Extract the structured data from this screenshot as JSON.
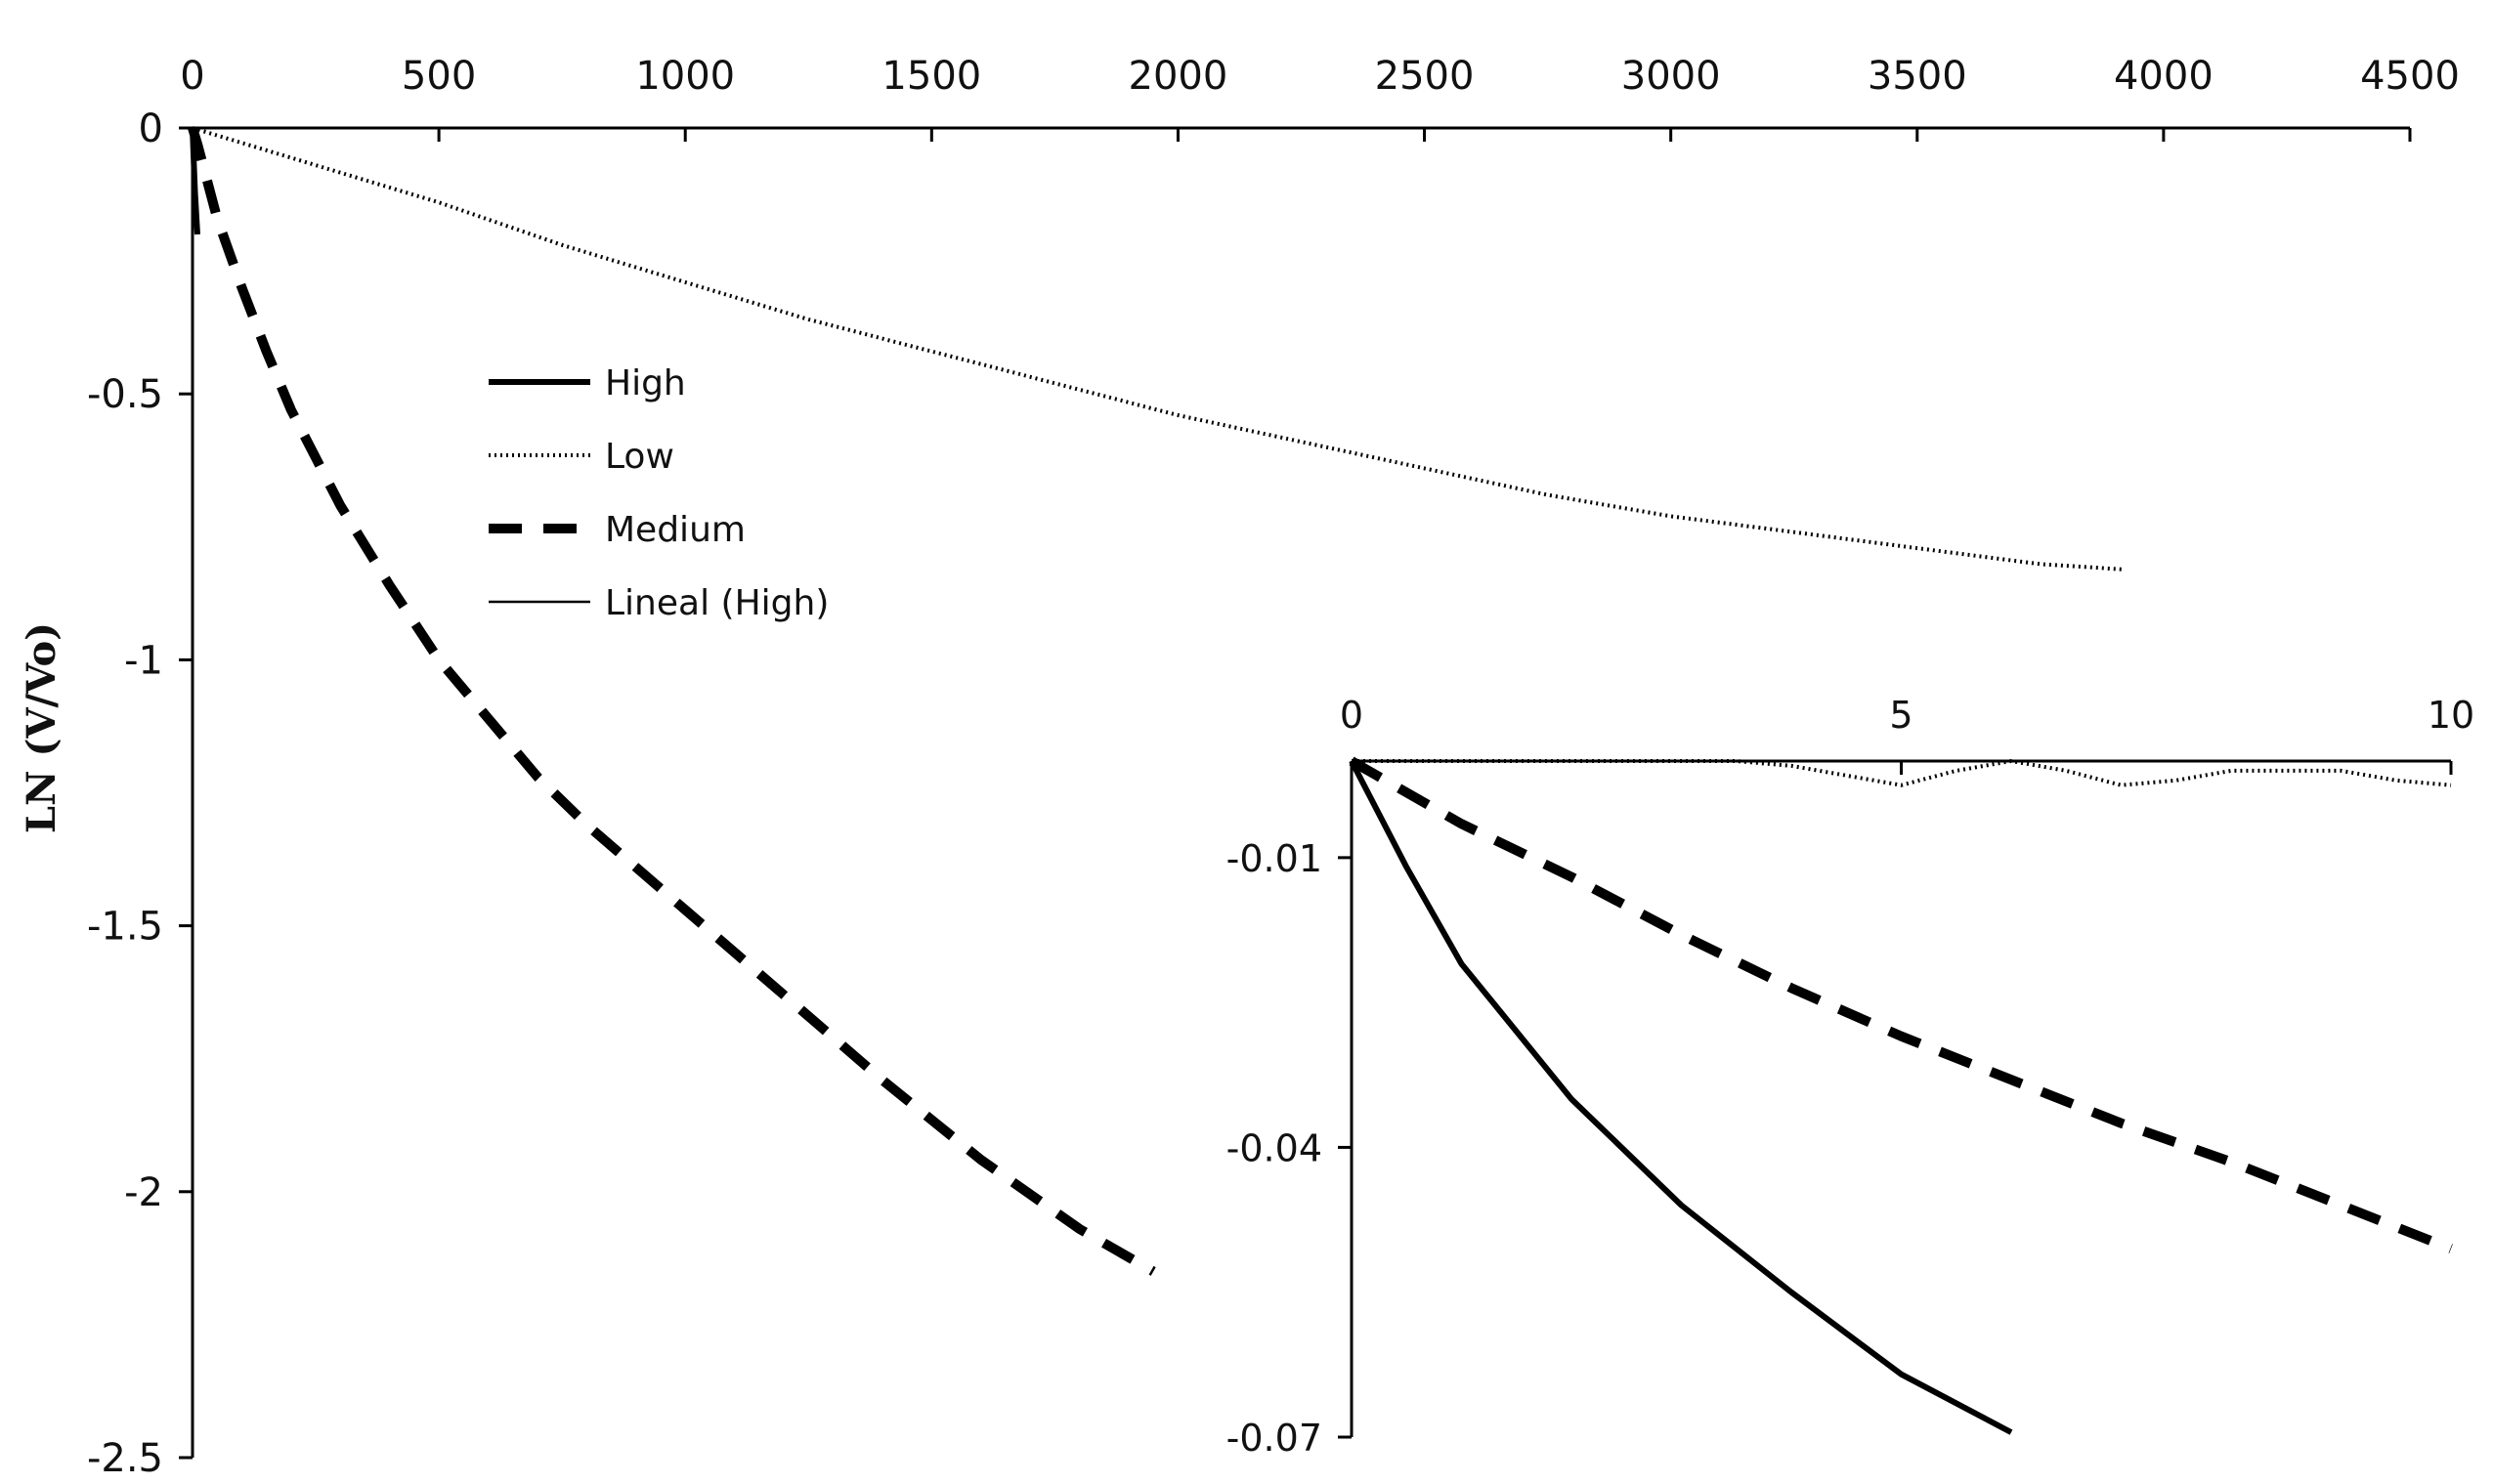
{
  "chart_data": [
    {
      "type": "line",
      "title": "",
      "xlabel": "",
      "ylabel": "LN (V/Vo)",
      "xlim": [
        0,
        4500
      ],
      "ylim": [
        -2.5,
        0
      ],
      "x_axis_position": "top",
      "x_ticks": [
        0,
        500,
        1000,
        1500,
        2000,
        2500,
        3000,
        3500,
        4000,
        4500
      ],
      "y_ticks": [
        0,
        -0.5,
        -1,
        -1.5,
        -2,
        -2.5
      ],
      "grid": false,
      "legend_position": "upper-left",
      "series": [
        {
          "name": "Low",
          "style": "dotted",
          "x": [
            0,
            250,
            500,
            750,
            1000,
            1250,
            1500,
            1750,
            2000,
            2250,
            2500,
            2750,
            3000,
            3250,
            3500,
            3750,
            3920
          ],
          "y": [
            0,
            -0.07,
            -0.14,
            -0.22,
            -0.29,
            -0.36,
            -0.42,
            -0.48,
            -0.54,
            -0.59,
            -0.64,
            -0.69,
            -0.73,
            -0.76,
            -0.79,
            -0.82,
            -0.83
          ]
        },
        {
          "name": "Medium",
          "style": "dashed",
          "x": [
            0,
            10,
            50,
            100,
            150,
            200,
            300,
            400,
            500,
            600,
            700,
            800,
            1000,
            1200,
            1400,
            1600,
            1800,
            1950
          ],
          "y": [
            0,
            -0.03,
            -0.17,
            -0.3,
            -0.42,
            -0.53,
            -0.71,
            -0.86,
            -1,
            -1.11,
            -1.22,
            -1.31,
            -1.47,
            -1.63,
            -1.79,
            -1.94,
            -2.07,
            -2.15
          ]
        },
        {
          "name": "High",
          "style": "solid",
          "x": [
            0,
            2,
            5,
            10
          ],
          "y": [
            0,
            -0.05,
            -0.12,
            -0.2
          ]
        },
        {
          "name": "Lineal (High)",
          "style": "solid-thin",
          "x": [],
          "y": []
        }
      ]
    },
    {
      "type": "line",
      "title": "",
      "xlabel": "",
      "ylabel": "",
      "xlim": [
        0,
        10
      ],
      "ylim": [
        -0.07,
        0
      ],
      "x_axis_position": "top",
      "x_ticks": [
        0,
        5,
        10
      ],
      "y_ticks": [
        -0.01,
        -0.04,
        -0.07
      ],
      "grid": false,
      "position": "lower-right inset",
      "series": [
        {
          "name": "Low",
          "style": "dotted",
          "x": [
            0,
            1,
            2,
            3,
            3.5,
            4,
            4.5,
            5,
            5.5,
            6,
            6.5,
            7,
            7.5,
            8,
            8.5,
            9,
            9.5,
            10
          ],
          "y": [
            0,
            0,
            0,
            0,
            0,
            -0.0005,
            -0.0015,
            -0.0025,
            -0.001,
            0,
            -0.001,
            -0.0025,
            -0.002,
            -0.001,
            -0.001,
            -0.001,
            -0.002,
            -0.0025
          ]
        },
        {
          "name": "Medium",
          "style": "dashed",
          "x": [
            0,
            1,
            2,
            3,
            4,
            5,
            6,
            7,
            8,
            9,
            10
          ],
          "y": [
            0,
            -0.0065,
            -0.012,
            -0.018,
            -0.0235,
            -0.0285,
            -0.033,
            -0.0375,
            -0.0415,
            -0.046,
            -0.0505
          ]
        },
        {
          "name": "High",
          "style": "solid",
          "x": [
            0,
            0.5,
            1,
            2,
            3,
            4,
            5,
            6
          ],
          "y": [
            0,
            -0.011,
            -0.021,
            -0.035,
            -0.046,
            -0.055,
            -0.0635,
            -0.0695
          ]
        }
      ]
    }
  ]
}
